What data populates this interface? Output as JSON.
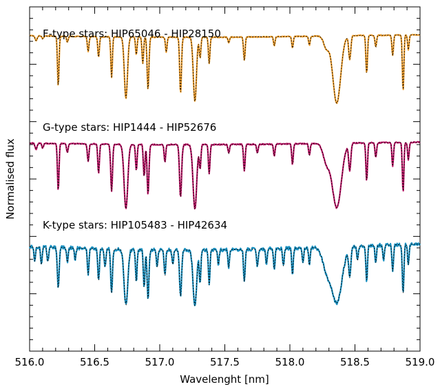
{
  "chart_data": {
    "type": "line",
    "xlabel": "Wavelenght [nm]",
    "ylabel": "Normalised flux",
    "xlim": [
      516.0,
      519.0
    ],
    "xticks": [
      "516.0",
      "516.5",
      "517.0",
      "517.5",
      "518.0",
      "518.5",
      "519.0"
    ],
    "grid": false,
    "panels": [
      {
        "label": "F-type stars:  HIP65046 - HIP28150",
        "color_observed": "#f0a030",
        "color_model": "#000000",
        "noise": 0.008,
        "lines": [
          [
            516.05,
            0.08,
            0.008
          ],
          [
            516.1,
            0.05,
            0.006
          ],
          [
            516.22,
            0.85,
            0.006
          ],
          [
            516.29,
            0.1,
            0.006
          ],
          [
            516.45,
            0.25,
            0.006
          ],
          [
            516.53,
            0.35,
            0.006
          ],
          [
            516.63,
            0.7,
            0.006
          ],
          [
            516.74,
            1.05,
            0.012
          ],
          [
            516.82,
            0.3,
            0.006
          ],
          [
            516.87,
            0.45,
            0.006
          ],
          [
            516.91,
            0.9,
            0.007
          ],
          [
            517.05,
            0.25,
            0.006
          ],
          [
            517.16,
            0.95,
            0.007
          ],
          [
            517.27,
            1.1,
            0.012
          ],
          [
            517.31,
            0.35,
            0.006
          ],
          [
            517.38,
            0.45,
            0.006
          ],
          [
            517.53,
            0.1,
            0.006
          ],
          [
            517.65,
            0.4,
            0.006
          ],
          [
            517.88,
            0.15,
            0.006
          ],
          [
            518.02,
            0.2,
            0.006
          ],
          [
            518.15,
            0.15,
            0.006
          ],
          [
            518.28,
            0.2,
            0.02
          ],
          [
            518.36,
            1.15,
            0.03
          ],
          [
            518.46,
            0.4,
            0.008
          ],
          [
            518.59,
            0.65,
            0.006
          ],
          [
            518.66,
            0.2,
            0.006
          ],
          [
            518.79,
            0.35,
            0.006
          ],
          [
            518.87,
            0.95,
            0.006
          ],
          [
            518.91,
            0.25,
            0.006
          ]
        ]
      },
      {
        "label": "G-type stars: HIP1444 - HIP52676",
        "color_observed": "#c0186a",
        "color_model": "#000000",
        "noise": 0.01,
        "lines": [
          [
            516.05,
            0.1,
            0.008
          ],
          [
            516.1,
            0.08,
            0.006
          ],
          [
            516.22,
            0.8,
            0.006
          ],
          [
            516.29,
            0.15,
            0.006
          ],
          [
            516.45,
            0.3,
            0.006
          ],
          [
            516.53,
            0.5,
            0.006
          ],
          [
            516.63,
            0.8,
            0.007
          ],
          [
            516.74,
            1.1,
            0.014
          ],
          [
            516.82,
            0.45,
            0.006
          ],
          [
            516.88,
            0.55,
            0.006
          ],
          [
            516.91,
            0.85,
            0.007
          ],
          [
            517.04,
            0.3,
            0.006
          ],
          [
            517.16,
            0.9,
            0.008
          ],
          [
            517.27,
            1.1,
            0.014
          ],
          [
            517.31,
            0.4,
            0.006
          ],
          [
            517.38,
            0.5,
            0.006
          ],
          [
            517.53,
            0.15,
            0.006
          ],
          [
            517.65,
            0.45,
            0.006
          ],
          [
            517.75,
            0.15,
            0.006
          ],
          [
            517.88,
            0.2,
            0.006
          ],
          [
            518.02,
            0.35,
            0.006
          ],
          [
            518.15,
            0.2,
            0.006
          ],
          [
            518.28,
            0.3,
            0.025
          ],
          [
            518.36,
            1.1,
            0.035
          ],
          [
            518.46,
            0.45,
            0.008
          ],
          [
            518.59,
            0.65,
            0.006
          ],
          [
            518.66,
            0.25,
            0.006
          ],
          [
            518.79,
            0.4,
            0.006
          ],
          [
            518.87,
            0.85,
            0.006
          ],
          [
            518.91,
            0.3,
            0.006
          ]
        ]
      },
      {
        "label": "K-type stars: HIP105483 - HIP42634",
        "color_observed": "#1a90c0",
        "color_model": "#000000",
        "noise": 0.03,
        "lines": [
          [
            516.04,
            0.25,
            0.006
          ],
          [
            516.09,
            0.3,
            0.006
          ],
          [
            516.14,
            0.25,
            0.006
          ],
          [
            516.22,
            0.7,
            0.007
          ],
          [
            516.29,
            0.25,
            0.006
          ],
          [
            516.35,
            0.2,
            0.006
          ],
          [
            516.45,
            0.45,
            0.006
          ],
          [
            516.53,
            0.55,
            0.006
          ],
          [
            516.58,
            0.3,
            0.006
          ],
          [
            516.63,
            0.75,
            0.007
          ],
          [
            516.74,
            0.95,
            0.014
          ],
          [
            516.82,
            0.55,
            0.006
          ],
          [
            516.88,
            0.65,
            0.006
          ],
          [
            516.91,
            0.85,
            0.007
          ],
          [
            516.98,
            0.3,
            0.006
          ],
          [
            517.04,
            0.45,
            0.006
          ],
          [
            517.1,
            0.25,
            0.006
          ],
          [
            517.16,
            0.8,
            0.008
          ],
          [
            517.27,
            0.95,
            0.014
          ],
          [
            517.31,
            0.55,
            0.006
          ],
          [
            517.38,
            0.6,
            0.006
          ],
          [
            517.45,
            0.25,
            0.006
          ],
          [
            517.53,
            0.3,
            0.006
          ],
          [
            517.65,
            0.55,
            0.006
          ],
          [
            517.75,
            0.3,
            0.006
          ],
          [
            517.82,
            0.25,
            0.006
          ],
          [
            517.88,
            0.35,
            0.006
          ],
          [
            517.95,
            0.3,
            0.006
          ],
          [
            518.02,
            0.45,
            0.006
          ],
          [
            518.1,
            0.25,
            0.006
          ],
          [
            518.15,
            0.3,
            0.006
          ],
          [
            518.28,
            0.35,
            0.03
          ],
          [
            518.36,
            0.95,
            0.04
          ],
          [
            518.46,
            0.5,
            0.008
          ],
          [
            518.52,
            0.25,
            0.006
          ],
          [
            518.59,
            0.6,
            0.006
          ],
          [
            518.66,
            0.3,
            0.006
          ],
          [
            518.72,
            0.25,
            0.006
          ],
          [
            518.79,
            0.45,
            0.006
          ],
          [
            518.87,
            0.85,
            0.006
          ],
          [
            518.91,
            0.35,
            0.006
          ]
        ]
      }
    ]
  }
}
